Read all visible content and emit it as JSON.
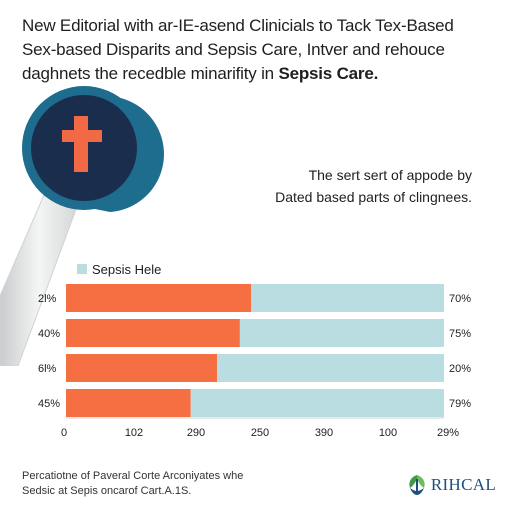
{
  "headline": {
    "line1": "New Editorial with ar-IE-asend Clinicials to Tack Tex-Based",
    "line2": "Sex-based Disparits and Sepsis Care, Intver and rehouce",
    "line3_prefix": "daghnets the recedble minarifity in ",
    "line3_strong": "Sepsis Care."
  },
  "side_note": {
    "line1": "The sert sert of appode by",
    "line2": "Dated based parts of clingnees."
  },
  "footer_note": {
    "line1": "Percatiotne of Paveral Corte Arconiyates whe",
    "line2": "Sedsic at Sepis oncarof Cart.A.1S."
  },
  "brand": {
    "name": "RIHCAL",
    "color": "#1d4f7a",
    "icon": "leaf-emblem-icon"
  },
  "magnifier": {
    "icon": "magnifier-cross-icon",
    "ring_color": "#1e6d8e",
    "lens_color": "#1b2d4d",
    "cross_color": "#f26a45"
  },
  "chart_data": {
    "type": "bar",
    "orientation": "horizontal",
    "stacked": true,
    "categories": [
      "2l%",
      "40%",
      "6l%",
      "45%"
    ],
    "right_labels": [
      "70%",
      "75%",
      "20%",
      "79%"
    ],
    "x_ticks": [
      "0",
      "102",
      "290",
      "250",
      "390",
      "100",
      "29%"
    ],
    "legend": {
      "label": "Sepsis Hele",
      "color": "#b9dde0",
      "placement": "top-left"
    },
    "series": [
      {
        "values": [
          0.49,
          0.46,
          0.4,
          0.33
        ],
        "color": "#f56f43"
      },
      {
        "values": [
          0.51,
          0.54,
          0.6,
          0.67
        ],
        "color": "#b9dde0"
      }
    ],
    "grid": false
  }
}
